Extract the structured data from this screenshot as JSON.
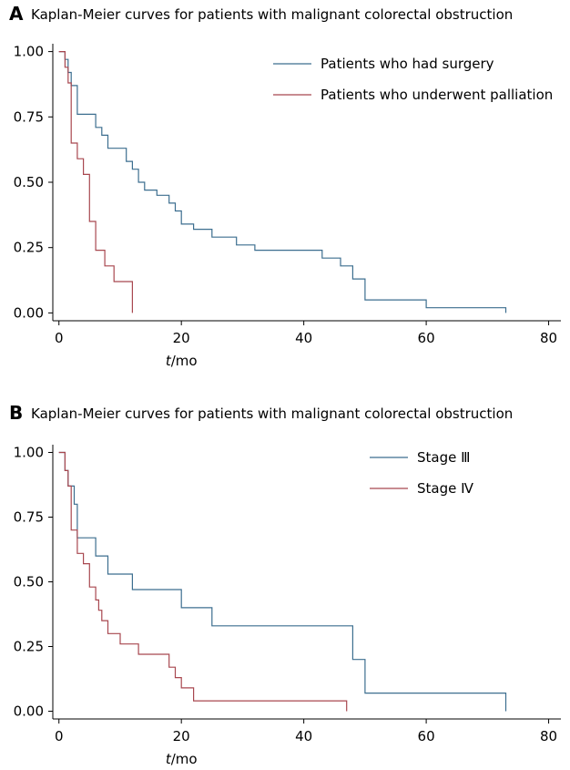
{
  "chart_data": [
    {
      "type": "line",
      "panel_label": "A",
      "title": "Kaplan-Meier curves for patients with malignant colorectal obstruction",
      "x_label": {
        "italic": "t",
        "rest": "/mo"
      },
      "xlim": [
        -1,
        82
      ],
      "ylim": [
        -0.03,
        1.03
      ],
      "x_ticks": [
        0,
        20,
        40,
        60,
        80
      ],
      "y_ticks": [
        0.0,
        0.25,
        0.5,
        0.75,
        1.0
      ],
      "y_tick_labels": [
        "0.00",
        "0.25",
        "0.50",
        "0.75",
        "1.00"
      ],
      "grid": false,
      "legend_position": "top-right",
      "series": [
        {
          "name": "Patients who had surgery",
          "color": "#3c6e8f",
          "steps": [
            [
              0,
              1.0
            ],
            [
              1,
              0.97
            ],
            [
              1.5,
              0.92
            ],
            [
              2,
              0.87
            ],
            [
              3,
              0.76
            ],
            [
              6,
              0.71
            ],
            [
              7,
              0.68
            ],
            [
              8,
              0.63
            ],
            [
              11,
              0.58
            ],
            [
              12,
              0.55
            ],
            [
              13,
              0.5
            ],
            [
              14,
              0.47
            ],
            [
              16,
              0.45
            ],
            [
              18,
              0.42
            ],
            [
              19,
              0.39
            ],
            [
              20,
              0.34
            ],
            [
              22,
              0.32
            ],
            [
              25,
              0.29
            ],
            [
              29,
              0.26
            ],
            [
              32,
              0.24
            ],
            [
              43,
              0.21
            ],
            [
              46,
              0.18
            ],
            [
              48,
              0.13
            ],
            [
              50,
              0.05
            ],
            [
              60,
              0.02
            ],
            [
              73,
              0.0
            ]
          ]
        },
        {
          "name": "Patients who underwent palliation",
          "color": "#a8474f",
          "steps": [
            [
              0,
              1.0
            ],
            [
              1,
              0.94
            ],
            [
              1.5,
              0.88
            ],
            [
              2,
              0.65
            ],
            [
              3,
              0.59
            ],
            [
              4,
              0.53
            ],
            [
              5,
              0.35
            ],
            [
              6,
              0.24
            ],
            [
              7.5,
              0.18
            ],
            [
              9,
              0.12
            ],
            [
              12,
              0.0
            ]
          ]
        }
      ]
    },
    {
      "type": "line",
      "panel_label": "B",
      "title": "Kaplan-Meier curves for patients with malignant colorectal obstruction",
      "x_label": {
        "italic": "t",
        "rest": "/mo"
      },
      "xlim": [
        -1,
        82
      ],
      "ylim": [
        -0.03,
        1.03
      ],
      "x_ticks": [
        0,
        20,
        40,
        60,
        80
      ],
      "y_ticks": [
        0.0,
        0.25,
        0.5,
        0.75,
        1.0
      ],
      "y_tick_labels": [
        "0.00",
        "0.25",
        "0.50",
        "0.75",
        "1.00"
      ],
      "grid": false,
      "legend_position": "top-right",
      "series": [
        {
          "name": "Stage Ⅲ",
          "color": "#3c6e8f",
          "steps": [
            [
              0,
              1.0
            ],
            [
              1,
              0.93
            ],
            [
              1.5,
              0.87
            ],
            [
              2.5,
              0.8
            ],
            [
              3,
              0.67
            ],
            [
              6,
              0.6
            ],
            [
              8,
              0.53
            ],
            [
              12,
              0.47
            ],
            [
              20,
              0.4
            ],
            [
              25,
              0.33
            ],
            [
              48,
              0.2
            ],
            [
              50,
              0.07
            ],
            [
              73,
              0.0
            ]
          ]
        },
        {
          "name": "Stage Ⅳ",
          "color": "#a8474f",
          "steps": [
            [
              0,
              1.0
            ],
            [
              1,
              0.93
            ],
            [
              1.5,
              0.87
            ],
            [
              2,
              0.7
            ],
            [
              3,
              0.61
            ],
            [
              4,
              0.57
            ],
            [
              5,
              0.48
            ],
            [
              6,
              0.43
            ],
            [
              6.5,
              0.39
            ],
            [
              7,
              0.35
            ],
            [
              8,
              0.3
            ],
            [
              10,
              0.26
            ],
            [
              13,
              0.22
            ],
            [
              18,
              0.17
            ],
            [
              19,
              0.13
            ],
            [
              20,
              0.09
            ],
            [
              22,
              0.04
            ],
            [
              47,
              0.0
            ]
          ]
        }
      ]
    }
  ]
}
